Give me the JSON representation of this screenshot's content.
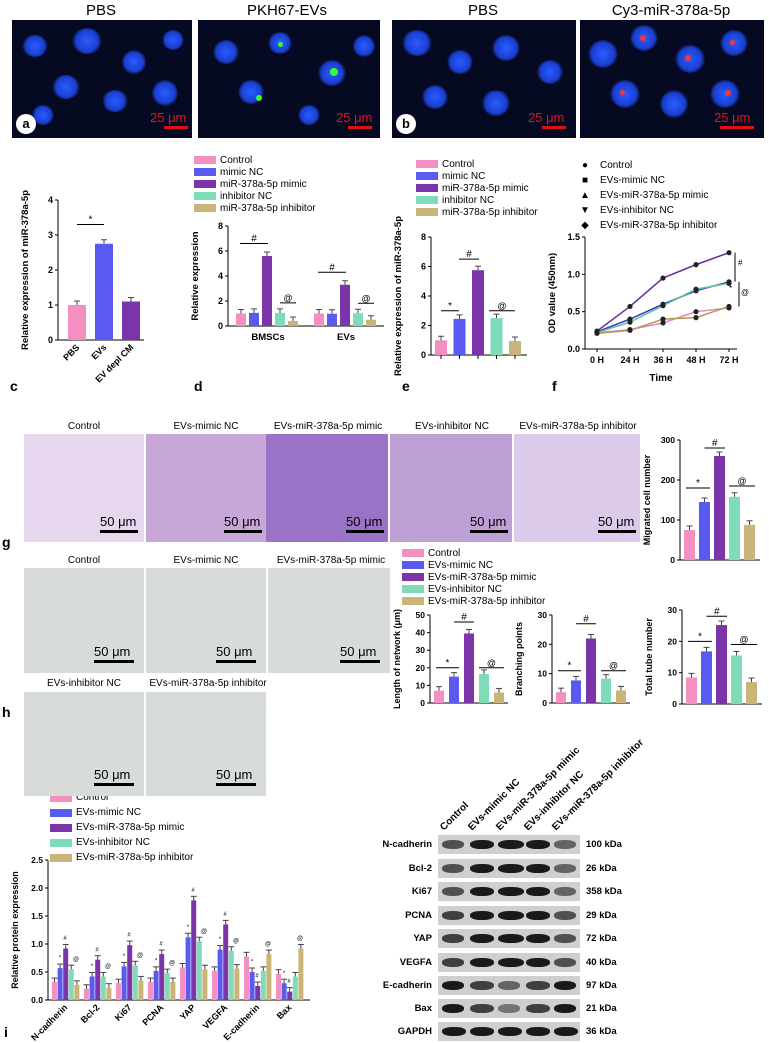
{
  "panel_a": {
    "titles": [
      "PBS",
      "PKH67-EVs"
    ],
    "label": "a",
    "scale": "25 μm"
  },
  "panel_b": {
    "titles": [
      "PBS",
      "Cy3-miR-378a-5p"
    ],
    "label": "b",
    "scale": "25 μm"
  },
  "legend5": [
    "Control",
    "mimic NC",
    "miR-378a-5p mimic",
    "inhibitor NC",
    "miR-378a-5p inhibitor"
  ],
  "legend_evs": [
    "Control",
    "EVs-mimic NC",
    "EVs-miR-378a-5p mimic",
    "EVs-inhibitor NC",
    "EVs-miR-378a-5p inhibitor"
  ],
  "colors": {
    "control": "#f48fc1",
    "mimic_nc": "#5a5af0",
    "mimic": "#7b35a8",
    "inhibitor_nc": "#7fdcb8",
    "inhibitor": "#c9b57a"
  },
  "panel_labels": {
    "c": "c",
    "d": "d",
    "e": "e",
    "f": "f",
    "g": "g",
    "h": "h",
    "i": "i"
  },
  "chart_data": [
    {
      "id": "c",
      "type": "bar",
      "ylabel": "Relative expression of miR-378a-5p",
      "categories": [
        "PBS",
        "EVs",
        "EV depl CM"
      ],
      "values": [
        1.0,
        2.75,
        1.1
      ],
      "ylim": [
        0,
        4
      ],
      "yticks": [
        0,
        1,
        2,
        3,
        4
      ],
      "annotation": "*"
    },
    {
      "id": "d",
      "type": "bar",
      "ylabel": "Relative expression",
      "groups": [
        "BMSCs",
        "EVs"
      ],
      "series": [
        {
          "name": "Control",
          "values": [
            1.0,
            1.0
          ]
        },
        {
          "name": "mimic NC",
          "values": [
            1.05,
            0.98
          ]
        },
        {
          "name": "miR-378a-5p mimic",
          "values": [
            5.6,
            3.3
          ]
        },
        {
          "name": "inhibitor NC",
          "values": [
            1.05,
            1.02
          ]
        },
        {
          "name": "miR-378a-5p inhibitor",
          "values": [
            0.4,
            0.5
          ]
        }
      ],
      "ylim": [
        0,
        8
      ],
      "yticks": [
        0,
        2,
        4,
        6,
        8
      ],
      "annotations": [
        "#",
        "@"
      ]
    },
    {
      "id": "e",
      "type": "bar",
      "ylabel": "Relative expression of miR-378a-5p",
      "categories": [
        "Control",
        "mimic NC",
        "miR-378a-5p mimic",
        "inhibitor NC",
        "miR-378a-5p inhibitor"
      ],
      "values": [
        1.0,
        2.45,
        5.75,
        2.5,
        0.95
      ],
      "ylim": [
        0,
        8
      ],
      "yticks": [
        0,
        2,
        4,
        6,
        8
      ],
      "annotations": [
        "*",
        "#",
        "@"
      ]
    },
    {
      "id": "f",
      "type": "line",
      "ylabel": "OD value (450nm)",
      "xlabel": "Time",
      "categories": [
        "0 H",
        "24 H",
        "36 H",
        "48 H",
        "72 H"
      ],
      "series": [
        {
          "name": "Control",
          "values": [
            0.22,
            0.26,
            0.35,
            0.5,
            0.55
          ]
        },
        {
          "name": "EVs-mimic NC",
          "values": [
            0.23,
            0.4,
            0.6,
            0.78,
            0.9
          ]
        },
        {
          "name": "EVs-miR-378a-5p mimic",
          "values": [
            0.24,
            0.57,
            0.95,
            1.13,
            1.29
          ]
        },
        {
          "name": "EVs-inhibitor NC",
          "values": [
            0.22,
            0.36,
            0.58,
            0.8,
            0.88
          ]
        },
        {
          "name": "EVs-miR-378a-5p inhibitor",
          "values": [
            0.21,
            0.25,
            0.4,
            0.42,
            0.57
          ]
        }
      ],
      "ylim": [
        0,
        1.5
      ],
      "yticks": [
        0.0,
        0.5,
        1.0,
        1.5
      ],
      "annotations": [
        "#",
        "*",
        "@"
      ]
    },
    {
      "id": "g",
      "type": "bar",
      "ylabel": "Migrated cell number",
      "categories": [
        "Control",
        "EVs-mimic NC",
        "EVs-miR-378a-5p mimic",
        "EVs-inhibitor NC",
        "EVs-miR-378a-5p inhibitor"
      ],
      "values": [
        75,
        145,
        260,
        158,
        88
      ],
      "ylim": [
        0,
        300
      ],
      "yticks": [
        0,
        100,
        200,
        300
      ],
      "annotations": [
        "*",
        "#",
        "@"
      ]
    },
    {
      "id": "h1",
      "type": "bar",
      "ylabel": "Length of network (μm)",
      "categories": [
        "Control",
        "EVs-mimic NC",
        "EVs-miR-378a-5p mimic",
        "EVs-inhibitor NC",
        "EVs-miR-378a-5p inhibitor"
      ],
      "values": [
        7,
        15,
        39.5,
        16.5,
        6
      ],
      "ylim": [
        0,
        50
      ],
      "yticks": [
        0,
        10,
        20,
        30,
        40,
        50
      ],
      "annotations": [
        "*",
        "#",
        "@"
      ]
    },
    {
      "id": "h2",
      "type": "bar",
      "ylabel": "Branching points",
      "categories": [
        "Control",
        "EVs-mimic NC",
        "EVs-miR-378a-5p mimic",
        "EVs-inhibitor NC",
        "EVs-miR-378a-5p inhibitor"
      ],
      "values": [
        3.7,
        7.7,
        22,
        8.3,
        4.3
      ],
      "ylim": [
        0,
        30
      ],
      "yticks": [
        0,
        10,
        20,
        30
      ],
      "annotations": [
        "*",
        "#",
        "@"
      ]
    },
    {
      "id": "h3",
      "type": "bar",
      "ylabel": "Total tube number",
      "categories": [
        "Control",
        "EVs-mimic NC",
        "EVs-miR-378a-5p mimic",
        "EVs-inhibitor NC",
        "EVs-miR-378a-5p inhibitor"
      ],
      "values": [
        8.5,
        16.8,
        25.2,
        15.5,
        7
      ],
      "ylim": [
        0,
        30
      ],
      "yticks": [
        0,
        10,
        20,
        30
      ],
      "annotations": [
        "*",
        "#",
        "@"
      ]
    },
    {
      "id": "i",
      "type": "bar",
      "ylabel": "Relative protein expression",
      "groups": [
        "N-cadherin",
        "Bcl-2",
        "Ki67",
        "PCNA",
        "YAP",
        "VEGFA",
        "E-cadherin",
        "Bax"
      ],
      "series": [
        {
          "name": "Control",
          "values": [
            0.32,
            0.2,
            0.3,
            0.32,
            0.58,
            0.52,
            0.78,
            0.47
          ]
        },
        {
          "name": "EVs-mimic NC",
          "values": [
            0.57,
            0.42,
            0.6,
            0.52,
            1.12,
            0.9,
            0.5,
            0.3
          ]
        },
        {
          "name": "EVs-miR-378a-5p mimic",
          "values": [
            0.92,
            0.72,
            0.98,
            0.82,
            1.78,
            1.35,
            0.25,
            0.15
          ]
        },
        {
          "name": "EVs-inhibitor NC",
          "values": [
            0.55,
            0.42,
            0.62,
            0.48,
            1.05,
            0.88,
            0.52,
            0.42
          ]
        },
        {
          "name": "EVs-miR-378a-5p inhibitor",
          "values": [
            0.27,
            0.22,
            0.35,
            0.32,
            0.55,
            0.56,
            0.82,
            0.92
          ]
        }
      ],
      "ylim": [
        0,
        2.5
      ],
      "yticks": [
        0.0,
        0.5,
        1.0,
        1.5,
        2.0,
        2.5
      ],
      "annotations": [
        "*",
        "#",
        "@"
      ]
    }
  ],
  "panel_g": {
    "titles": [
      "Control",
      "EVs-mimic NC",
      "EVs-miR-378a-5p mimic",
      "EVs-inhibitor NC",
      "EVs-miR-378a-5p inhibitor"
    ],
    "scale": "50 μm"
  },
  "panel_h": {
    "titles": [
      "Control",
      "EVs-mimic NC",
      "EVs-miR-378a-5p mimic",
      "EVs-inhibitor NC",
      "EVs-miR-378a-5p inhibitor"
    ],
    "scale": "50 μm"
  },
  "western": {
    "lanes": [
      "Control",
      "EVs-mimic NC",
      "EVs-miR-378a-5p mimic",
      "EVs-inhibitor NC",
      "EVs-miR-378a-5p inhibitor"
    ],
    "rows": [
      {
        "protein": "N-cadherin",
        "size": "100 kDa"
      },
      {
        "protein": "Bcl-2",
        "size": "26 kDa"
      },
      {
        "protein": "Ki67",
        "size": "358 kDa"
      },
      {
        "protein": "PCNA",
        "size": "29 kDa"
      },
      {
        "protein": "YAP",
        "size": "72 kDa"
      },
      {
        "protein": "VEGFA",
        "size": "40 kDa"
      },
      {
        "protein": "E-cadherin",
        "size": "97 kDa"
      },
      {
        "protein": "Bax",
        "size": "21 kDa"
      },
      {
        "protein": "GAPDH",
        "size": "36 kDa"
      }
    ]
  }
}
